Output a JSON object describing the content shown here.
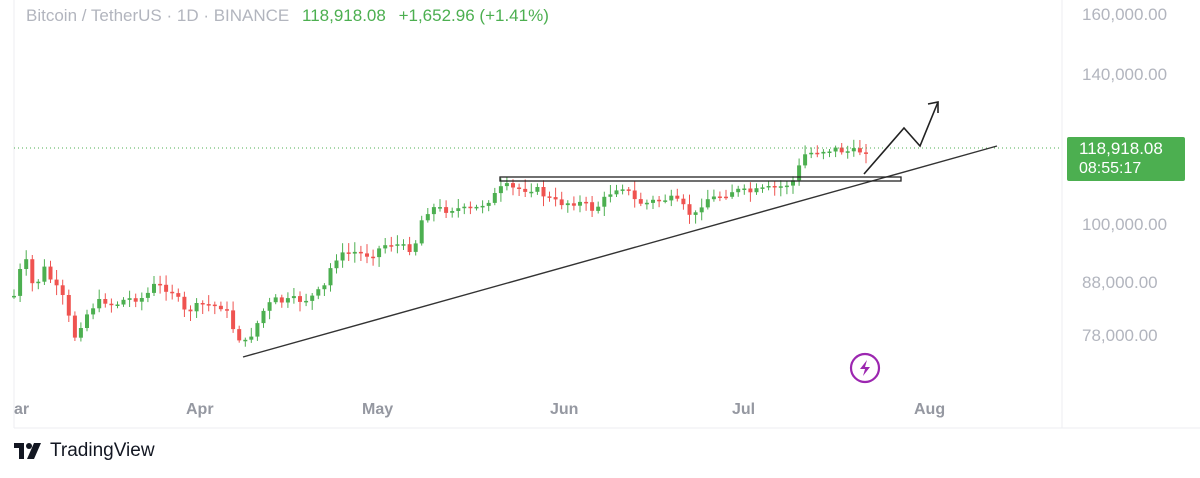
{
  "header": {
    "symbol_text": "Bitcoin / TetherUS · 1D · BINANCE",
    "last_price": "118,918.08",
    "change": "+1,652.96 (+1.41%)"
  },
  "price_tag": {
    "price": "118,918.08",
    "countdown": "08:55:17"
  },
  "footer": {
    "brand": "TradingView"
  },
  "colors": {
    "up": "#4caf50",
    "down": "#ef5350",
    "axis_text": "#b2b5be",
    "lightning": "#9c27b0"
  },
  "icons": {
    "lightning": "lightning-icon",
    "logo": "tradingview-logo-icon"
  },
  "chart_data": {
    "type": "candlestick",
    "title": "",
    "xlabel": "",
    "ylabel": "",
    "y_ticks": [
      "160,000.00",
      "140,000.00",
      "100,000.00",
      "88,000.00",
      "78,000.00"
    ],
    "x_ticks": [
      "ar",
      "Apr",
      "May",
      "Jun",
      "Jul",
      "Aug"
    ],
    "last_price_line": 118918.08,
    "legend": "none",
    "grid": false,
    "candle_count": 141
  }
}
